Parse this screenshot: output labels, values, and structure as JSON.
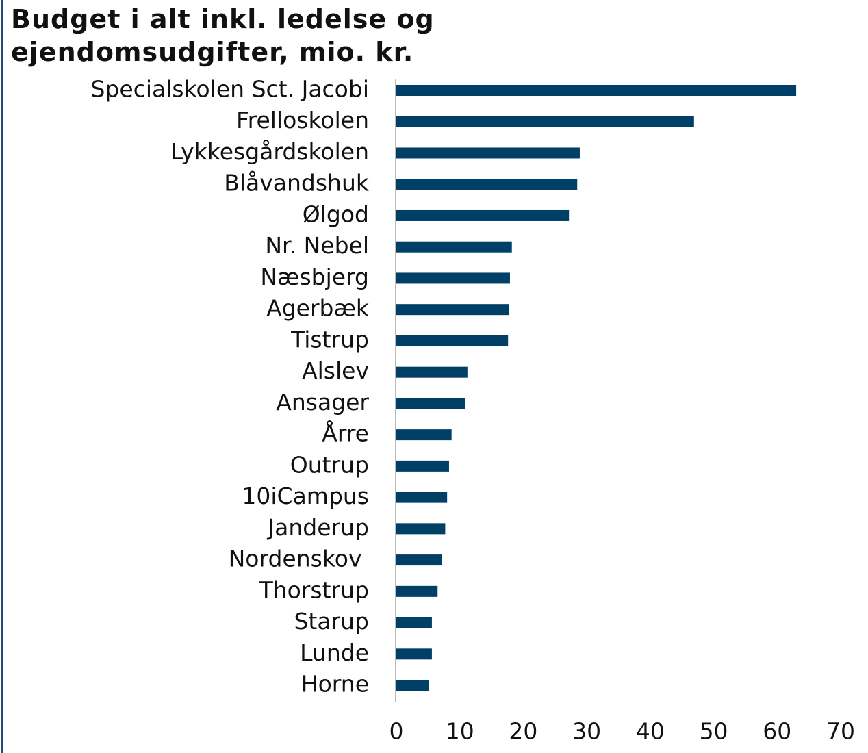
{
  "chart_data": {
    "type": "bar",
    "orientation": "horizontal",
    "title": "Budget i alt inkl. ledelse og ejendomsudgifter, mio. kr.",
    "categories": [
      "Specialskolen Sct. Jacobi",
      "Frelloskolen",
      "Lykkesgårdskolen",
      "Blåvandshuk",
      "Ølgod",
      "Nr. Nebel",
      "Næsbjerg",
      "Agerbæk",
      "Tistrup",
      "Alslev",
      "Ansager",
      "Årre",
      "Outrup",
      "10iCampus",
      "Janderup",
      "Nordenskov ",
      "Thorstrup",
      "Starup",
      "Lunde",
      "Horne"
    ],
    "values": [
      63.0,
      46.9,
      28.9,
      28.5,
      27.2,
      18.2,
      17.9,
      17.8,
      17.6,
      11.2,
      10.8,
      8.7,
      8.3,
      8.0,
      7.7,
      7.2,
      6.5,
      5.6,
      5.6,
      5.1
    ],
    "color": "#003f66",
    "xlim": [
      0,
      70
    ],
    "xticks": [
      0,
      10,
      20,
      30,
      40,
      50,
      60,
      70
    ],
    "grid": false
  }
}
